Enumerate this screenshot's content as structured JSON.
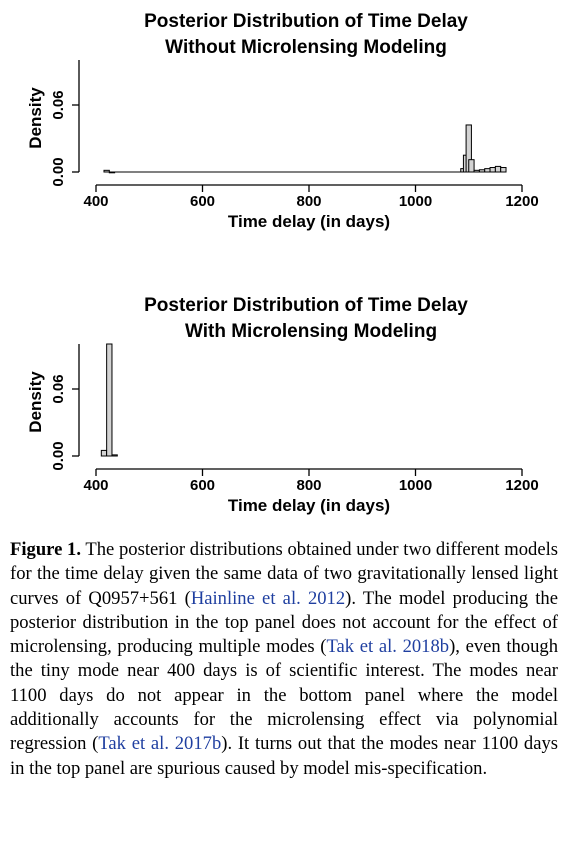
{
  "chart_data": [
    {
      "type": "bar",
      "title_lines": [
        "Posterior Distribution of Time Delay",
        "Without Microlensing Modeling"
      ],
      "xlabel": "Time delay (in days)",
      "ylabel": "Density",
      "xlim": [
        400,
        1200
      ],
      "ylim": [
        0,
        0.1
      ],
      "xticks": [
        "400",
        "600",
        "800",
        "1000",
        "1200"
      ],
      "yticks": [
        "0.00",
        "0.06"
      ],
      "bin_width": 10,
      "bins": [
        {
          "x": 420,
          "y": 0.0015
        },
        {
          "x": 430,
          "y": 0.0
        },
        {
          "x": 1090,
          "y": 0.003
        },
        {
          "x": 1095,
          "y": 0.015
        },
        {
          "x": 1100,
          "y": 0.042
        },
        {
          "x": 1105,
          "y": 0.011
        },
        {
          "x": 1115,
          "y": 0.0015
        },
        {
          "x": 1125,
          "y": 0.002
        },
        {
          "x": 1135,
          "y": 0.003
        },
        {
          "x": 1145,
          "y": 0.004
        },
        {
          "x": 1155,
          "y": 0.005
        },
        {
          "x": 1165,
          "y": 0.004
        }
      ]
    },
    {
      "type": "bar",
      "title_lines": [
        "Posterior Distribution of Time Delay",
        "With Microlensing Modeling"
      ],
      "xlabel": "Time delay (in days)",
      "ylabel": "Density",
      "xlim": [
        400,
        1200
      ],
      "ylim": [
        0,
        0.1
      ],
      "xticks": [
        "400",
        "600",
        "800",
        "1000",
        "1200"
      ],
      "yticks": [
        "0.00",
        "0.06"
      ],
      "bin_width": 10,
      "bins": [
        {
          "x": 415,
          "y": 0.005
        },
        {
          "x": 425,
          "y": 0.1
        },
        {
          "x": 435,
          "y": 0.001
        }
      ]
    }
  ],
  "caption": {
    "label": "Figure 1.",
    "text_1": " The posterior distributions obtained under two different models for the time delay given the same data of two gravitationally lensed light curves of Q0957+561 (",
    "cite_1": "Hainline et al. 2012",
    "text_2": "). The model producing the posterior distribution in the top panel does not account for the effect of microlensing, producing multiple modes (",
    "cite_2": "Tak et al. 2018b",
    "text_3": "), even though the tiny mode near 400 days is of scientific interest. The modes near 1100 days do not appear in the bottom panel where the model additionally accounts for the microlensing effect via polynomial regression (",
    "cite_3": "Tak et al. 2017b",
    "text_4": "). It turns out that the modes near 1100 days in the top panel are spurious caused by model mis-specification."
  }
}
